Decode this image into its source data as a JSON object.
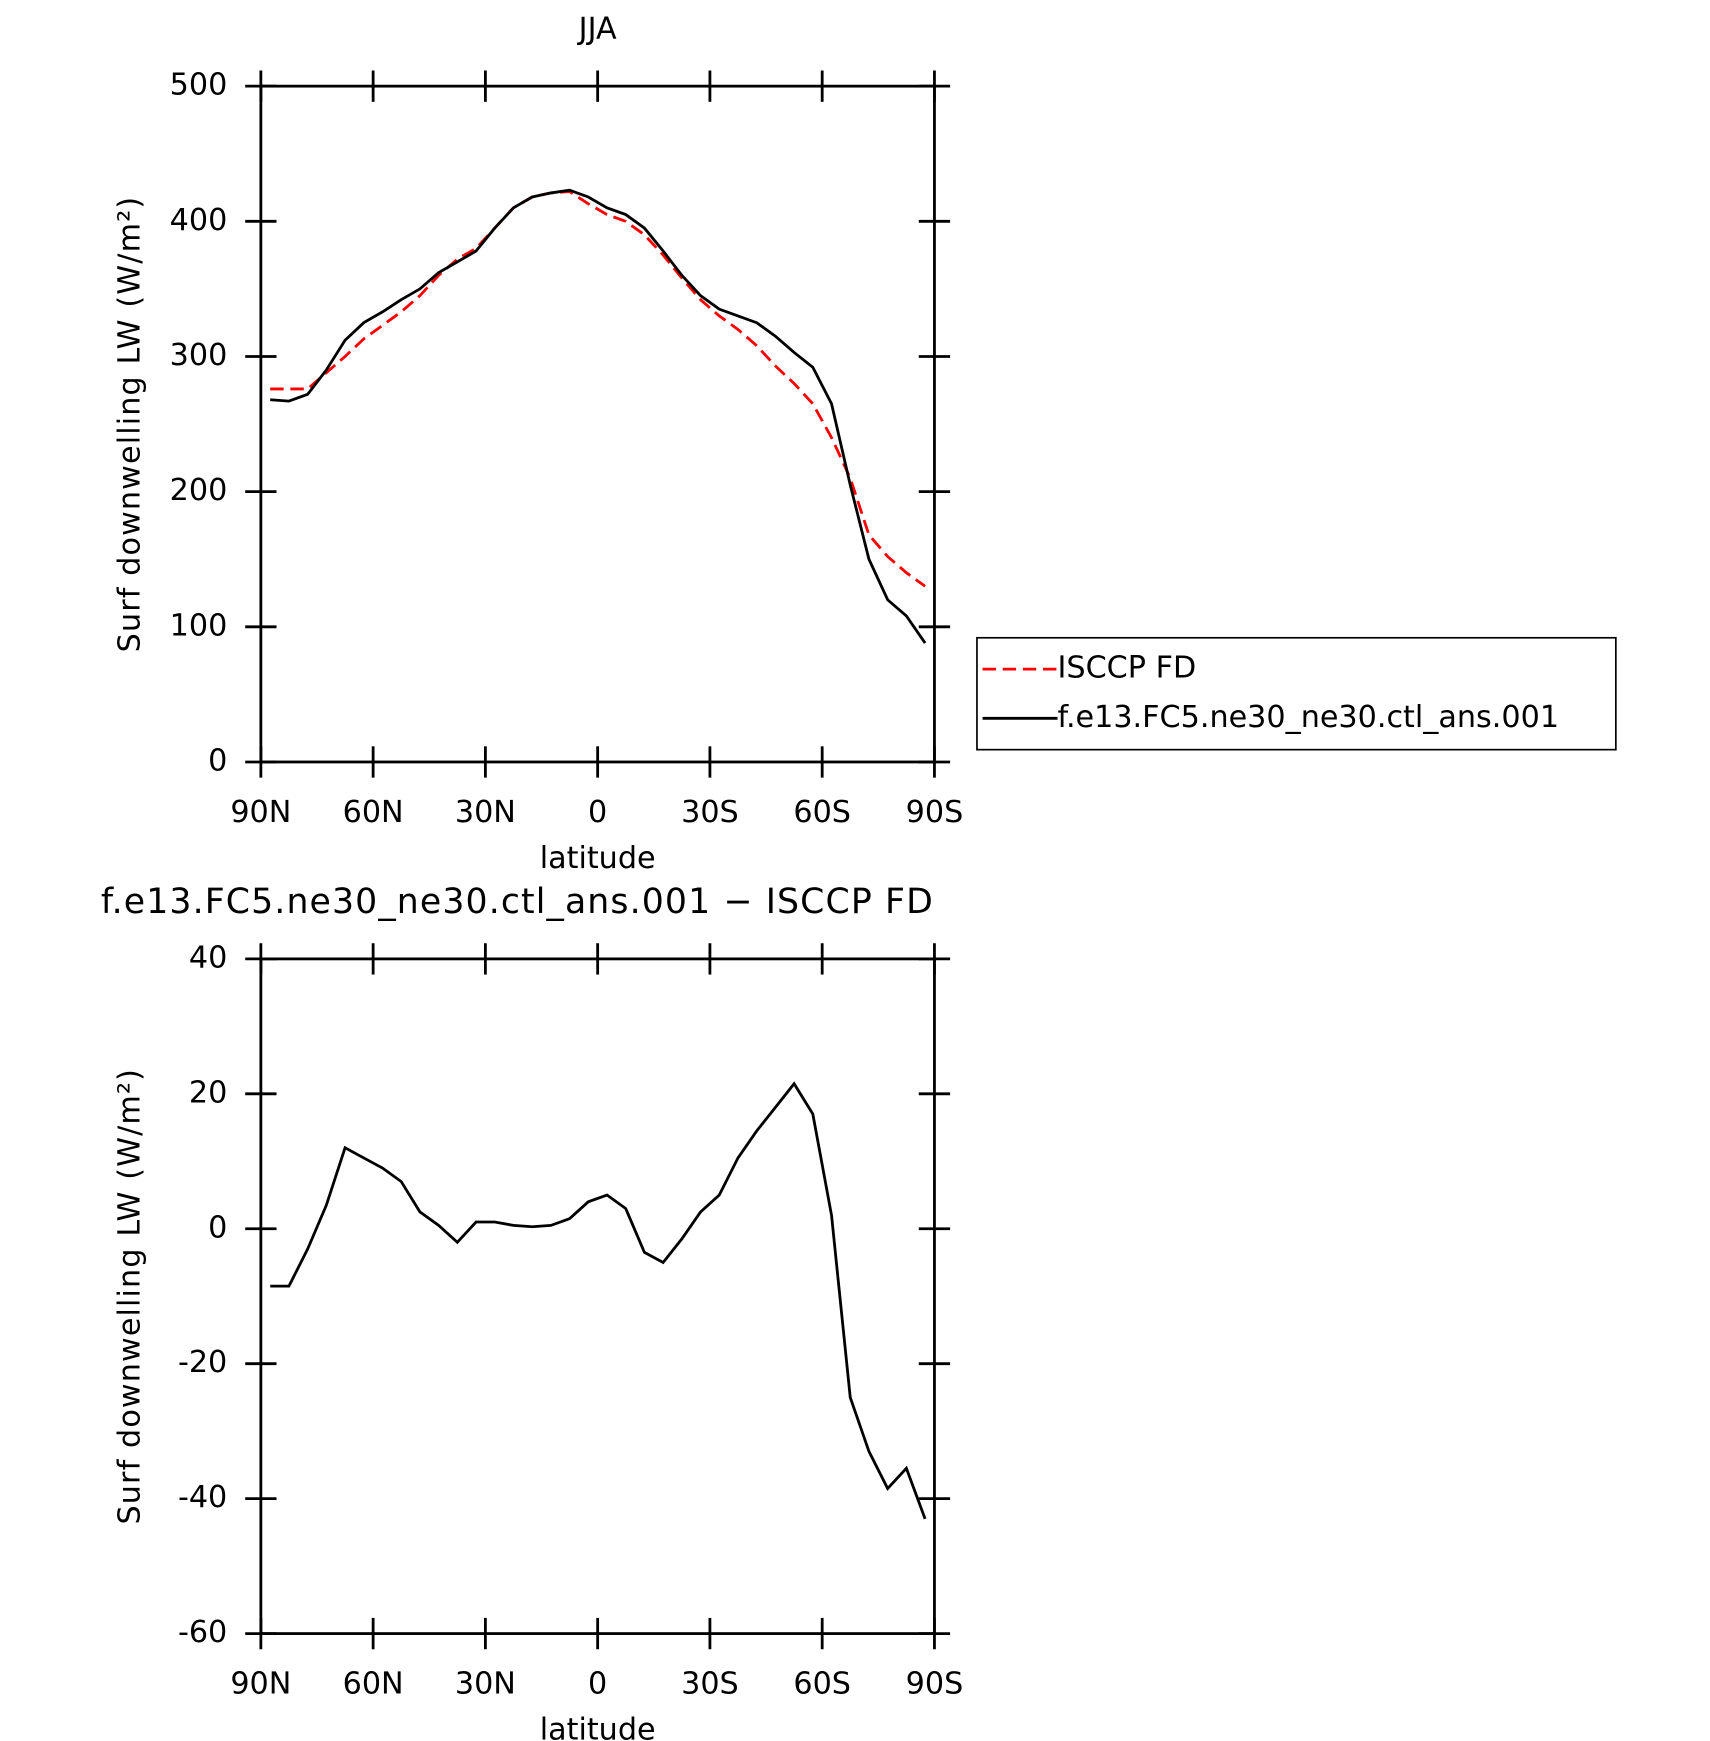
{
  "chart_data": [
    {
      "type": "line",
      "title": "JJA",
      "xlabel": "latitude",
      "ylabel": "Surf downwelling LW (W/m²)",
      "x": [
        87.5,
        82.5,
        77.5,
        72.5,
        67.5,
        62.5,
        57.5,
        52.5,
        47.5,
        42.5,
        37.5,
        32.5,
        27.5,
        22.5,
        17.5,
        12.5,
        7.5,
        2.5,
        -2.5,
        -7.5,
        -12.5,
        -17.5,
        -22.5,
        -27.5,
        -32.5,
        -37.5,
        -42.5,
        -47.5,
        -52.5,
        -57.5,
        -62.5,
        -67.5,
        -72.5,
        -77.5,
        -82.5,
        -87.5
      ],
      "series": [
        {
          "name": "ISCCP FD",
          "color": "#ff0000",
          "dashed": true,
          "values": [
            276,
            276,
            276,
            288,
            300,
            313,
            323,
            333,
            345,
            360,
            372,
            380,
            395,
            410,
            418,
            421,
            422,
            413,
            405,
            400,
            390,
            375,
            358,
            342,
            330,
            320,
            308,
            293,
            280,
            265,
            240,
            210,
            168,
            152,
            140,
            130
          ]
        },
        {
          "name": "f.e13.FC5.ne30_ne30.ctl_ans.001",
          "color": "#000000",
          "dashed": false,
          "values": [
            268,
            267,
            272,
            290,
            312,
            325,
            333,
            342,
            350,
            362,
            370,
            378,
            395,
            410,
            418,
            421,
            423,
            418,
            410,
            405,
            395,
            378,
            360,
            345,
            335,
            330,
            325,
            315,
            303,
            292,
            265,
            205,
            150,
            120,
            108,
            88
          ]
        }
      ],
      "xlim": [
        90,
        -90
      ],
      "xticks": [
        {
          "value": 90,
          "label": "90N"
        },
        {
          "value": 60,
          "label": "60N"
        },
        {
          "value": 30,
          "label": "30N"
        },
        0,
        {
          "value": -30,
          "label": "30S"
        },
        {
          "value": -60,
          "label": "60S"
        },
        {
          "value": -90,
          "label": "90S"
        }
      ],
      "ylim": [
        0,
        500
      ],
      "yticks": [
        0,
        100,
        200,
        300,
        400,
        500
      ],
      "legend": "right"
    },
    {
      "type": "line",
      "title": "f.e13.FC5.ne30_ne30.ctl_ans.001 − ISCCP FD",
      "xlabel": "latitude",
      "ylabel": "Surf downwelling LW (W/m²)",
      "x": [
        87.5,
        82.5,
        77.5,
        72.5,
        67.5,
        62.5,
        57.5,
        52.5,
        47.5,
        42.5,
        37.5,
        32.5,
        27.5,
        22.5,
        17.5,
        12.5,
        7.5,
        2.5,
        -2.5,
        -7.5,
        -12.5,
        -17.5,
        -22.5,
        -27.5,
        -32.5,
        -37.5,
        -42.5,
        -47.5,
        -52.5,
        -57.5,
        -62.5,
        -67.5,
        -72.5,
        -77.5,
        -82.5,
        -87.5
      ],
      "series": [
        {
          "color": "#000000",
          "dashed": false,
          "values": [
            -8.5,
            -8.5,
            -3,
            3.5,
            12,
            10.5,
            9,
            7,
            2.5,
            0.5,
            -2,
            1,
            1,
            0.5,
            0.3,
            0.5,
            1.5,
            4,
            5,
            3,
            -3.5,
            -5,
            -1.5,
            2.5,
            5,
            10.5,
            14.5,
            18,
            21.5,
            17,
            2,
            -25,
            -33,
            -38.5,
            -35.5,
            -43
          ]
        }
      ],
      "xlim": [
        90,
        -90
      ],
      "xticks": [
        {
          "value": 90,
          "label": "90N"
        },
        {
          "value": 60,
          "label": "60N"
        },
        {
          "value": 30,
          "label": "30N"
        },
        0,
        {
          "value": -30,
          "label": "30S"
        },
        {
          "value": -60,
          "label": "60S"
        },
        {
          "value": -90,
          "label": "90S"
        }
      ],
      "ylim": [
        -60,
        40
      ],
      "yticks": [
        -60,
        -40,
        -20,
        0,
        20,
        40
      ]
    }
  ]
}
